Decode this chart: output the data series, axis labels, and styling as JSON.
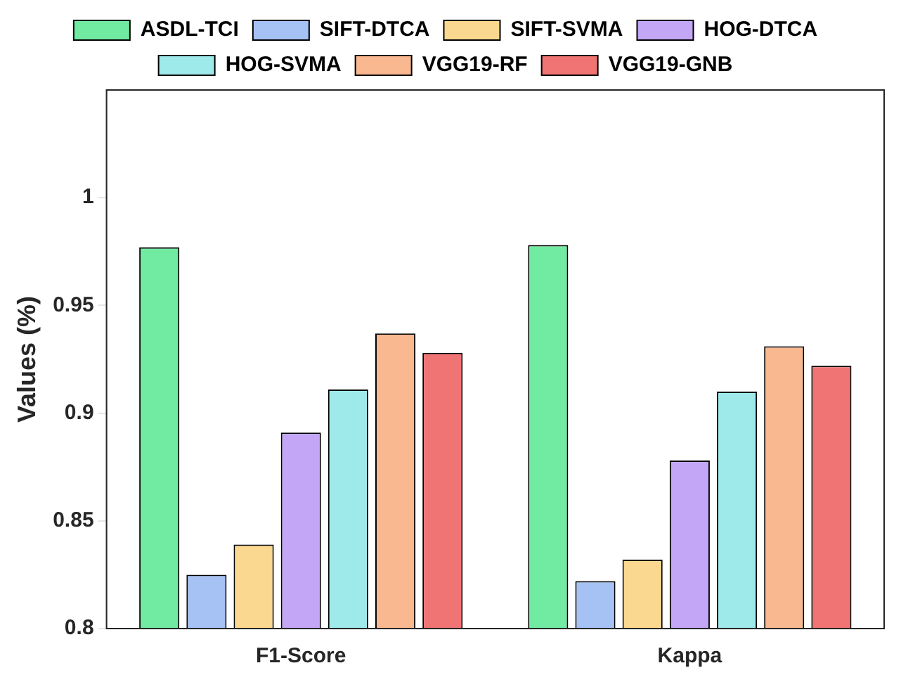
{
  "chart_data": {
    "type": "bar",
    "ylabel": "Values (%)",
    "categories": [
      "F1-Score",
      "Kappa"
    ],
    "series": [
      {
        "name": "ASDL-TCI",
        "color": "#72eba2",
        "values": [
          0.977,
          0.978
        ]
      },
      {
        "name": "SIFT-DTCA",
        "color": "#a6c2f5",
        "values": [
          0.825,
          0.822
        ]
      },
      {
        "name": "SIFT-SVMA",
        "color": "#fbd88f",
        "values": [
          0.839,
          0.832
        ]
      },
      {
        "name": "HOG-DTCA",
        "color": "#c3a6f5",
        "values": [
          0.891,
          0.878
        ]
      },
      {
        "name": "HOG-SVMA",
        "color": "#9eeaea",
        "values": [
          0.911,
          0.91
        ]
      },
      {
        "name": "VGG19-RF",
        "color": "#f9b890",
        "values": [
          0.937,
          0.931
        ]
      },
      {
        "name": "VGG19-GNB",
        "color": "#f07474",
        "values": [
          0.928,
          0.922
        ]
      }
    ],
    "ylim": [
      0.8,
      1.05
    ],
    "yticks": [
      0.8,
      0.85,
      0.9,
      0.95,
      1
    ],
    "grid": false,
    "legend": "top"
  }
}
